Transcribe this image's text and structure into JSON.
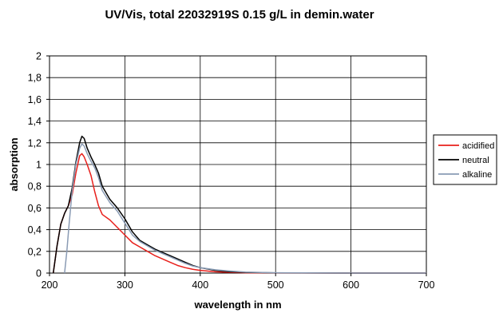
{
  "chart_data": {
    "type": "line",
    "title": "UV/Vis, total 22032919S 0.15 g/L in demin.water",
    "xlabel": "wavelength in nm",
    "ylabel": "absorption",
    "xlim": [
      200,
      700
    ],
    "ylim": [
      0,
      2
    ],
    "x_ticks": [
      "200",
      "300",
      "400",
      "500",
      "600",
      "700"
    ],
    "y_ticks": [
      "0",
      "0,2",
      "0,4",
      "0,6",
      "0,8",
      "1",
      "1,2",
      "1,4",
      "1,6",
      "1,8",
      "2"
    ],
    "grid": true,
    "legend_position": "right",
    "series": [
      {
        "name": "acidified",
        "color": "#e8201c",
        "points": [
          [
            205,
            0
          ],
          [
            210,
            0.25
          ],
          [
            215,
            0.45
          ],
          [
            220,
            0.55
          ],
          [
            225,
            0.62
          ],
          [
            230,
            0.72
          ],
          [
            235,
            0.92
          ],
          [
            240,
            1.08
          ],
          [
            243,
            1.1
          ],
          [
            246,
            1.07
          ],
          [
            250,
            1.0
          ],
          [
            255,
            0.9
          ],
          [
            260,
            0.75
          ],
          [
            265,
            0.62
          ],
          [
            270,
            0.54
          ],
          [
            280,
            0.49
          ],
          [
            290,
            0.42
          ],
          [
            300,
            0.35
          ],
          [
            310,
            0.28
          ],
          [
            320,
            0.24
          ],
          [
            330,
            0.2
          ],
          [
            340,
            0.16
          ],
          [
            350,
            0.13
          ],
          [
            360,
            0.1
          ],
          [
            370,
            0.07
          ],
          [
            380,
            0.05
          ],
          [
            390,
            0.035
          ],
          [
            400,
            0.025
          ],
          [
            420,
            0.012
          ],
          [
            440,
            0.006
          ],
          [
            460,
            0.003
          ],
          [
            500,
            0.001
          ],
          [
            600,
            0
          ],
          [
            700,
            0
          ]
        ]
      },
      {
        "name": "neutral",
        "color": "#000000",
        "points": [
          [
            205,
            0
          ],
          [
            210,
            0.25
          ],
          [
            215,
            0.45
          ],
          [
            220,
            0.55
          ],
          [
            225,
            0.62
          ],
          [
            230,
            0.78
          ],
          [
            235,
            1.02
          ],
          [
            240,
            1.2
          ],
          [
            243,
            1.26
          ],
          [
            246,
            1.24
          ],
          [
            250,
            1.15
          ],
          [
            255,
            1.07
          ],
          [
            260,
            1.0
          ],
          [
            265,
            0.92
          ],
          [
            270,
            0.8
          ],
          [
            280,
            0.68
          ],
          [
            290,
            0.6
          ],
          [
            300,
            0.5
          ],
          [
            310,
            0.38
          ],
          [
            320,
            0.3
          ],
          [
            330,
            0.26
          ],
          [
            340,
            0.22
          ],
          [
            350,
            0.19
          ],
          [
            360,
            0.16
          ],
          [
            370,
            0.13
          ],
          [
            380,
            0.1
          ],
          [
            390,
            0.07
          ],
          [
            400,
            0.05
          ],
          [
            420,
            0.025
          ],
          [
            440,
            0.012
          ],
          [
            460,
            0.006
          ],
          [
            500,
            0.002
          ],
          [
            600,
            0
          ],
          [
            700,
            0
          ]
        ]
      },
      {
        "name": "alkaline",
        "color": "#8a9bb4",
        "points": [
          [
            220,
            0
          ],
          [
            223,
            0.2
          ],
          [
            226,
            0.45
          ],
          [
            230,
            0.75
          ],
          [
            235,
            1.0
          ],
          [
            240,
            1.15
          ],
          [
            243,
            1.19
          ],
          [
            246,
            1.17
          ],
          [
            250,
            1.1
          ],
          [
            255,
            1.03
          ],
          [
            260,
            0.97
          ],
          [
            265,
            0.88
          ],
          [
            270,
            0.76
          ],
          [
            280,
            0.65
          ],
          [
            290,
            0.57
          ],
          [
            300,
            0.46
          ],
          [
            310,
            0.35
          ],
          [
            320,
            0.29
          ],
          [
            330,
            0.25
          ],
          [
            340,
            0.21
          ],
          [
            350,
            0.18
          ],
          [
            360,
            0.15
          ],
          [
            370,
            0.12
          ],
          [
            380,
            0.09
          ],
          [
            390,
            0.065
          ],
          [
            400,
            0.05
          ],
          [
            420,
            0.03
          ],
          [
            440,
            0.018
          ],
          [
            460,
            0.009
          ],
          [
            500,
            0.003
          ],
          [
            600,
            0
          ],
          [
            700,
            0
          ]
        ]
      }
    ]
  }
}
